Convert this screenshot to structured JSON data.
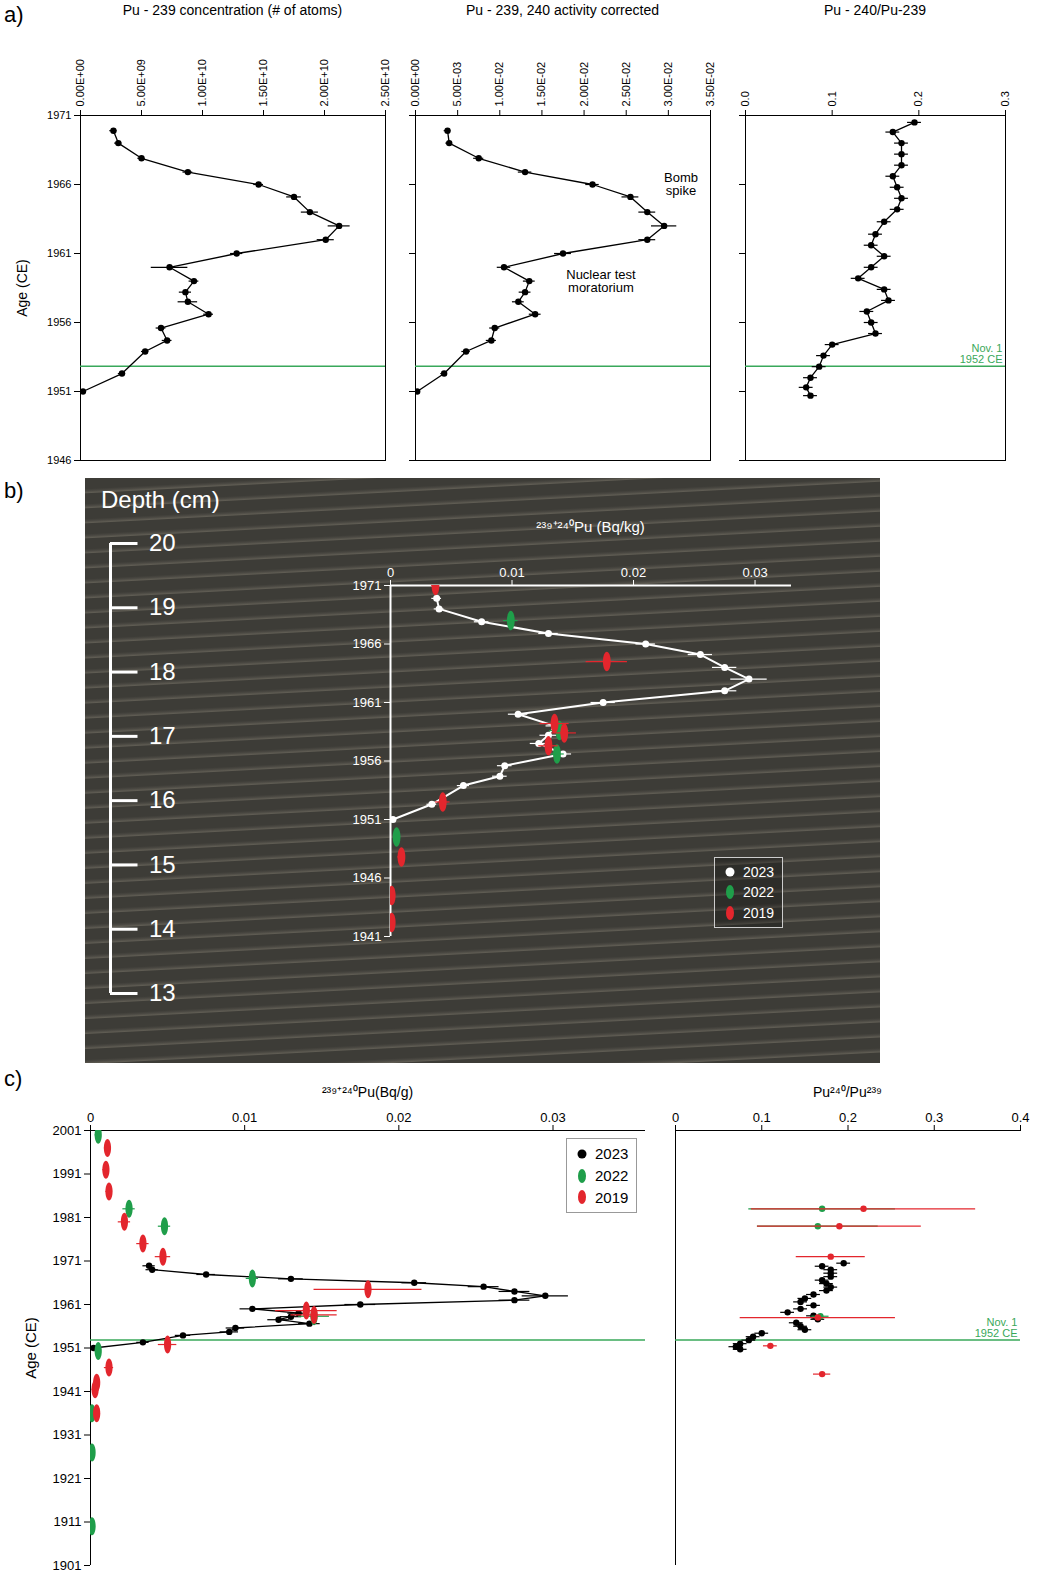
{
  "chart_data": [
    {
      "type": "scatter",
      "panel_label": "a)",
      "title": "Pu - 239 concentration (# of atoms)",
      "y_label": "Age (CE)",
      "xlim": [
        0,
        25000000000.0
      ],
      "xticks": [
        {
          "value": 0,
          "label": "0.00E+00"
        },
        {
          "value": 5000000000.0,
          "label": "5.00E+09"
        },
        {
          "value": 10000000000.0,
          "label": "1.00E+10"
        },
        {
          "value": 15000000000.0,
          "label": "1.50E+10"
        },
        {
          "value": 20000000000.0,
          "label": "2.00E+10"
        },
        {
          "value": 25000000000.0,
          "label": "2.50E+10"
        }
      ],
      "ylim": [
        1946,
        1971
      ],
      "yticks": [
        1946,
        1951,
        1956,
        1961,
        1966,
        1971
      ],
      "reference_line": {
        "value": 1952.83,
        "color": "#39a85a"
      },
      "series": [
        {
          "color": "#000000",
          "marker": "circle",
          "line_style": "solid",
          "y": [
            1969.9,
            1969.0,
            1967.9,
            1966.9,
            1966.0,
            1965.1,
            1964.0,
            1963.0,
            1962.0,
            1961.0,
            1960.0,
            1959.0,
            1958.2,
            1957.5,
            1956.6,
            1955.6,
            1954.7,
            1953.9,
            1952.3,
            1951.0
          ],
          "x": [
            2700000000.0,
            3100000000.0,
            5000000000.0,
            8800000000.0,
            14600000000.0,
            17500000000.0,
            18800000000.0,
            21200000000.0,
            20100000000.0,
            12800000000.0,
            7300000000.0,
            9300000000.0,
            8600000000.0,
            8800000000.0,
            10500000000.0,
            6600000000.0,
            7100000000.0,
            5300000000.0,
            3400000000.0,
            200000000.0
          ],
          "xerr": [
            300000000.0,
            300000000.0,
            300000000.0,
            400000000.0,
            400000000.0,
            600000000.0,
            700000000.0,
            900000000.0,
            700000000.0,
            500000000.0,
            1500000000.0,
            400000000.0,
            500000000.0,
            800000000.0,
            400000000.0,
            400000000.0,
            400000000.0,
            300000000.0,
            300000000.0,
            300000000.0
          ]
        }
      ]
    },
    {
      "type": "scatter",
      "title": "Pu - 239, 240 activity corrected",
      "tick_labels": "x",
      "xlim": [
        0,
        0.035
      ],
      "xticks": [
        {
          "value": 0,
          "label": "0.00E+00"
        },
        {
          "value": 0.005,
          "label": "5.00E-03"
        },
        {
          "value": 0.01,
          "label": "1.00E-02"
        },
        {
          "value": 0.015,
          "label": "1.50E-02"
        },
        {
          "value": 0.02,
          "label": "2.00E-02"
        },
        {
          "value": 0.025,
          "label": "2.50E-02"
        },
        {
          "value": 0.03,
          "label": "3.00E-02"
        },
        {
          "value": 0.035,
          "label": "3.50E-02"
        }
      ],
      "ylim": [
        1946,
        1971
      ],
      "yticks": [
        1946,
        1951,
        1956,
        1961,
        1966,
        1971
      ],
      "reference_line": {
        "value": 1952.83,
        "color": "#39a85a"
      },
      "annotations": [
        {
          "text": "Bomb spike",
          "x": 0.0315,
          "y": 1966.0
        },
        {
          "text": "Nuclear test moratorium",
          "x": 0.022,
          "y": 1959.0
        }
      ],
      "series": [
        {
          "color": "#000000",
          "marker": "circle",
          "line_style": "solid",
          "y": [
            1969.9,
            1969.0,
            1967.9,
            1966.9,
            1966.0,
            1965.1,
            1964.0,
            1963.0,
            1962.0,
            1961.0,
            1960.0,
            1959.0,
            1958.2,
            1957.5,
            1956.6,
            1955.6,
            1954.7,
            1953.9,
            1952.3,
            1951.0
          ],
          "x": [
            0.0038,
            0.004,
            0.0075,
            0.013,
            0.021,
            0.0255,
            0.0275,
            0.0295,
            0.0275,
            0.0175,
            0.0105,
            0.0135,
            0.013,
            0.0122,
            0.0142,
            0.0094,
            0.009,
            0.006,
            0.0034,
            0.0002
          ],
          "xerr": [
            0.0004,
            0.0004,
            0.0006,
            0.0008,
            0.0008,
            0.001,
            0.001,
            0.0015,
            0.001,
            0.001,
            0.0008,
            0.0007,
            0.0007,
            0.0007,
            0.0007,
            0.0006,
            0.0006,
            0.0005,
            0.0004,
            0.0003
          ]
        }
      ]
    },
    {
      "type": "scatter",
      "title": "Pu - 240/Pu-239",
      "tick_labels": "x",
      "xlim": [
        0,
        0.3
      ],
      "xticks": [
        {
          "value": 0,
          "label": "0.0"
        },
        0.1,
        0.2,
        0.3
      ],
      "ylim": [
        1946,
        1971
      ],
      "yticks": [
        1946,
        1951,
        1956,
        1961,
        1966,
        1971
      ],
      "reference_line": {
        "value": 1952.83,
        "color": "#39a85a",
        "label": "Nov. 1 1952 CE"
      },
      "series": [
        {
          "color": "#000000",
          "marker": "circle",
          "line_style": "solid",
          "y": [
            1970.5,
            1969.8,
            1969.0,
            1968.2,
            1967.4,
            1966.6,
            1965.8,
            1965.0,
            1964.2,
            1963.3,
            1962.4,
            1961.6,
            1960.8,
            1960.0,
            1959.2,
            1958.4,
            1957.6,
            1956.8,
            1956.0,
            1955.2,
            1954.4,
            1953.6,
            1952.8,
            1952.0,
            1951.3,
            1950.7
          ],
          "x": [
            0.195,
            0.17,
            0.18,
            0.18,
            0.18,
            0.17,
            0.175,
            0.18,
            0.175,
            0.16,
            0.15,
            0.145,
            0.16,
            0.145,
            0.13,
            0.16,
            0.165,
            0.14,
            0.145,
            0.15,
            0.1,
            0.09,
            0.085,
            0.075,
            0.07,
            0.075
          ],
          "xerr": [
            0.008,
            0.008,
            0.008,
            0.008,
            0.008,
            0.008,
            0.008,
            0.008,
            0.008,
            0.008,
            0.008,
            0.008,
            0.008,
            0.008,
            0.008,
            0.008,
            0.008,
            0.008,
            0.008,
            0.008,
            0.008,
            0.008,
            0.008,
            0.008,
            0.008,
            0.008
          ]
        }
      ]
    },
    {
      "type": "scatter",
      "panel_label": "b)",
      "x_label": "²³⁹⁺²⁴⁰Pu (Bq/kg)",
      "depth_axis": {
        "label": "Depth (cm)",
        "lim": [
          13,
          20
        ],
        "ticks": [
          13,
          14,
          15,
          16,
          17,
          18,
          19,
          20
        ]
      },
      "xlim": [
        0,
        0.033
      ],
      "xticks": [
        0,
        0.01,
        0.02,
        0.03
      ],
      "ylim": [
        1941,
        1971
      ],
      "yticks": [
        1941,
        1946,
        1951,
        1956,
        1961,
        1966,
        1971
      ],
      "legend": "bottom-right",
      "series": [
        {
          "name": "2023",
          "color": "#ffffff",
          "marker": "circle",
          "line_style": "solid",
          "y": [
            1969.9,
            1969.0,
            1967.9,
            1966.9,
            1966.0,
            1965.1,
            1964.0,
            1963.0,
            1962.0,
            1961.0,
            1960.0,
            1959.0,
            1958.2,
            1957.5,
            1956.6,
            1955.6,
            1954.7,
            1953.9,
            1952.3,
            1951.0
          ],
          "x": [
            0.0038,
            0.004,
            0.0075,
            0.013,
            0.021,
            0.0255,
            0.0275,
            0.0295,
            0.0275,
            0.0175,
            0.0105,
            0.0135,
            0.013,
            0.0122,
            0.0142,
            0.0094,
            0.009,
            0.006,
            0.0034,
            0.0002
          ],
          "xerr": [
            0.0004,
            0.0004,
            0.0006,
            0.0008,
            0.0008,
            0.001,
            0.001,
            0.0015,
            0.001,
            0.001,
            0.0008,
            0.0007,
            0.0007,
            0.0007,
            0.0007,
            0.0006,
            0.0006,
            0.0005,
            0.0004,
            0.0003
          ]
        },
        {
          "name": "2022",
          "color": "#1f9e4a",
          "marker": "ellipse",
          "line_style": "none",
          "y": [
            1968.0,
            1958.6,
            1956.6,
            1949.5
          ],
          "x": [
            0.0099,
            0.0139,
            0.0137,
            0.0005
          ],
          "xerr": [
            0.0006,
            0.0008,
            0.0006,
            0.0002
          ]
        },
        {
          "name": "2019",
          "color": "#e3262d",
          "marker": "ellipse",
          "line_style": "none",
          "y": [
            1971.0,
            1964.5,
            1959.2,
            1958.4,
            1957.3,
            1952.5,
            1947.8,
            1944.5,
            1942.2
          ],
          "x": [
            0.0037,
            0.0178,
            0.0135,
            0.0143,
            0.013,
            0.0043,
            0.0009,
            0.0001,
            0.0001
          ],
          "xerr": [
            0.0003,
            0.0017,
            0.0012,
            0.001,
            0.0008,
            0.0006,
            0.0003,
            0.0001,
            0.0001
          ]
        }
      ]
    },
    {
      "type": "scatter",
      "panel_label": "c)",
      "x_label": "²³⁹⁺²⁴⁰Pu(Bq/g)",
      "y_label": "Age (CE)",
      "xlim": [
        0,
        0.036
      ],
      "xticks": [
        0,
        0.01,
        0.02,
        0.03
      ],
      "ylim": [
        1901,
        2001
      ],
      "yticks": [
        1901,
        1911,
        1921,
        1931,
        1941,
        1951,
        1961,
        1971,
        1981,
        1991,
        2001
      ],
      "legend": "top-right",
      "reference_line": {
        "value": 1952.83,
        "color": "#39a85a"
      },
      "series": [
        {
          "name": "2023",
          "color": "#000000",
          "marker": "circle",
          "line_style": "solid",
          "y": [
            1969.9,
            1969.0,
            1967.9,
            1966.9,
            1966.0,
            1965.1,
            1964.0,
            1963.0,
            1962.0,
            1961.0,
            1960.0,
            1959.0,
            1958.2,
            1957.5,
            1956.6,
            1955.6,
            1954.7,
            1953.9,
            1952.3,
            1951.0
          ],
          "x": [
            0.0038,
            0.004,
            0.0075,
            0.013,
            0.021,
            0.0255,
            0.0275,
            0.0295,
            0.0275,
            0.0175,
            0.0105,
            0.0135,
            0.013,
            0.0122,
            0.0142,
            0.0094,
            0.009,
            0.006,
            0.0034,
            0.0002
          ],
          "xerr": [
            0.0004,
            0.0004,
            0.0006,
            0.0008,
            0.0008,
            0.001,
            0.001,
            0.0015,
            0.001,
            0.001,
            0.0008,
            0.0007,
            0.0007,
            0.0007,
            0.0007,
            0.0006,
            0.0006,
            0.0005,
            0.0004,
            0.0003
          ]
        },
        {
          "name": "2022",
          "color": "#1f9e4a",
          "marker": "ellipse",
          "line_style": "none",
          "y": [
            2000,
            1983,
            1979,
            1967,
            1958.3,
            1950.3,
            1936,
            1927,
            1910
          ],
          "x": [
            0.0005,
            0.0025,
            0.0048,
            0.0105,
            0.0145,
            0.0005,
            0.0001,
            0.0001,
            0.0001
          ],
          "xerr": [
            0.0002,
            0.0004,
            0.0004,
            0.0004,
            0.001,
            0.0002,
            0.0001,
            0.0001,
            0.0001
          ]
        },
        {
          "name": "2019",
          "color": "#e3262d",
          "marker": "ellipse",
          "line_style": "none",
          "y": [
            1997,
            1992,
            1987,
            1980,
            1975,
            1972,
            1964.5,
            1959.6,
            1958.6,
            1951.8,
            1946.5,
            1943,
            1941.5,
            1936
          ],
          "x": [
            0.0011,
            0.001,
            0.0012,
            0.0022,
            0.0034,
            0.0047,
            0.018,
            0.014,
            0.0145,
            0.005,
            0.0012,
            0.0004,
            0.0003,
            0.0004
          ],
          "xerr": [
            0.0002,
            0.0002,
            0.0002,
            0.0004,
            0.0004,
            0.0005,
            0.0035,
            0.002,
            0.0015,
            0.0006,
            0.0003,
            0.0002,
            0.0002,
            0.0002
          ]
        }
      ]
    },
    {
      "type": "scatter",
      "x_label": "Pu²⁴⁰/Pu²³⁹",
      "tick_labels": "x",
      "xlim": [
        0,
        0.4
      ],
      "xticks": [
        0,
        0.1,
        0.2,
        0.3,
        0.4
      ],
      "ylim": [
        1901,
        2001
      ],
      "yticks": [],
      "reference_line": {
        "value": 1952.83,
        "color": "#39a85a",
        "label": "Nov. 1 1952 CE"
      },
      "series": [
        {
          "name": "2023",
          "color": "#000000",
          "marker": "circle",
          "line_style": "none",
          "y": [
            1970.5,
            1969.8,
            1969.0,
            1968.2,
            1967.4,
            1966.6,
            1965.8,
            1965.0,
            1964.2,
            1963.3,
            1962.4,
            1961.6,
            1960.8,
            1960.0,
            1959.2,
            1958.4,
            1957.6,
            1956.8,
            1956.0,
            1955.2,
            1954.4,
            1953.6,
            1952.8,
            1952.0,
            1951.3,
            1950.7
          ],
          "x": [
            0.195,
            0.17,
            0.18,
            0.18,
            0.18,
            0.17,
            0.175,
            0.18,
            0.175,
            0.16,
            0.15,
            0.145,
            0.16,
            0.145,
            0.13,
            0.16,
            0.165,
            0.14,
            0.145,
            0.15,
            0.1,
            0.09,
            0.085,
            0.075,
            0.07,
            0.075
          ],
          "xerr": [
            0.008,
            0.008,
            0.008,
            0.008,
            0.008,
            0.008,
            0.008,
            0.008,
            0.008,
            0.008,
            0.008,
            0.008,
            0.008,
            0.008,
            0.008,
            0.008,
            0.008,
            0.008,
            0.008,
            0.008,
            0.008,
            0.008,
            0.008,
            0.008,
            0.008,
            0.008
          ]
        },
        {
          "name": "2022",
          "color": "#1f9e4a",
          "marker": "circle",
          "line_style": "none",
          "y": [
            1983,
            1979,
            1958.3
          ],
          "x": [
            0.17,
            0.165,
            0.168
          ],
          "xerr": [
            0.085,
            0.07,
            0.01
          ]
        },
        {
          "name": "2019",
          "color": "#e3262d",
          "marker": "circle",
          "line_style": "none",
          "y": [
            1983,
            1979,
            1972,
            1958.0,
            1951.5,
            1945
          ],
          "x": [
            0.218,
            0.19,
            0.18,
            0.165,
            0.11,
            0.17
          ],
          "xerr": [
            0.13,
            0.095,
            0.04,
            0.09,
            0.008,
            0.01
          ]
        }
      ]
    }
  ]
}
